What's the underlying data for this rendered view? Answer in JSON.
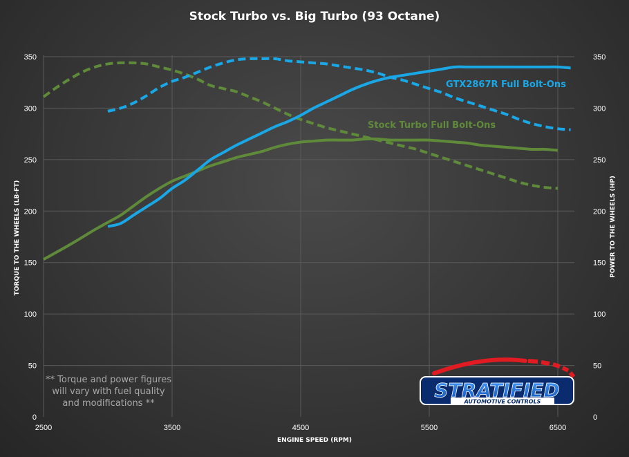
{
  "colors": {
    "stock": "#5f8a3a",
    "big": "#1aa7e6",
    "logo_blue": "#1a6fd8",
    "logo_red": "#e01b22"
  },
  "logo": {
    "name": "STRATIFIED",
    "tagline": "AUTOMOTIVE CONTROLS"
  },
  "note": [
    "** Torque and power figures",
    "will vary with fuel quality",
    "and modifications **"
  ],
  "chart_data": {
    "type": "line",
    "title": "Stock Turbo  vs.  Big Turbo  (93 Octane)",
    "xlabel": "ENGINE SPEED (RPM)",
    "ylabel_left": "TORQUE TO THE WHEELS (LB-FT)",
    "ylabel_right": "POWER TO THE WHEELS (HP)",
    "xlim": [
      2500,
      6700
    ],
    "xticks": [
      2500,
      3500,
      4500,
      5500,
      6500
    ],
    "ylim": [
      0,
      350
    ],
    "yticks": [
      0,
      50,
      100,
      150,
      200,
      250,
      300,
      350
    ],
    "grid": true,
    "series": [
      {
        "name": "Stock Turbo Full Bolt-Ons",
        "metric": "torque",
        "style": "solid",
        "color": "#5f8a3a",
        "x": [
          2500,
          2700,
          2900,
          3000,
          3100,
          3200,
          3300,
          3400,
          3500,
          3600,
          3700,
          3800,
          3900,
          4000,
          4100,
          4200,
          4300,
          4400,
          4500,
          4600,
          4700,
          4800,
          4900,
          5000,
          5100,
          5200,
          5300,
          5400,
          5500,
          5600,
          5700,
          5800,
          5900,
          6000,
          6100,
          6200,
          6300,
          6400,
          6500
        ],
        "y": [
          153,
          167,
          182,
          189,
          196,
          205,
          214,
          222,
          229,
          234,
          239,
          244,
          248,
          252,
          255,
          258,
          262,
          265,
          267,
          268,
          269,
          269,
          269,
          270,
          270,
          269,
          269,
          269,
          269,
          268,
          267,
          266,
          264,
          263,
          262,
          261,
          260,
          260,
          259
        ]
      },
      {
        "name": "Stock Turbo Full Bolt-Ons",
        "metric": "power",
        "style": "dashed",
        "color": "#5f8a3a",
        "x": [
          2500,
          2600,
          2700,
          2800,
          2900,
          3000,
          3100,
          3200,
          3300,
          3400,
          3500,
          3600,
          3700,
          3800,
          3900,
          4000,
          4100,
          4200,
          4300,
          4400,
          4500,
          4600,
          4700,
          4800,
          4900,
          5000,
          5100,
          5200,
          5300,
          5400,
          5500,
          5600,
          5700,
          5800,
          5900,
          6000,
          6100,
          6200,
          6300,
          6400,
          6500
        ],
        "y": [
          311,
          320,
          328,
          335,
          340,
          343,
          344,
          344,
          343,
          340,
          337,
          333,
          328,
          322,
          319,
          316,
          311,
          306,
          300,
          294,
          289,
          285,
          281,
          278,
          275,
          272,
          269,
          266,
          263,
          260,
          256,
          252,
          248,
          244,
          240,
          236,
          232,
          228,
          225,
          223,
          222
        ]
      },
      {
        "name": "GTX2867R Full Bolt-Ons",
        "metric": "torque",
        "style": "solid",
        "color": "#1aa7e6",
        "x": [
          3000,
          3100,
          3200,
          3300,
          3400,
          3500,
          3600,
          3700,
          3800,
          3900,
          4000,
          4100,
          4200,
          4300,
          4400,
          4500,
          4600,
          4700,
          4800,
          4900,
          5000,
          5100,
          5200,
          5300,
          5400,
          5500,
          5600,
          5700,
          5800,
          5900,
          6000,
          6100,
          6200,
          6300,
          6400,
          6500,
          6600
        ],
        "y": [
          185,
          188,
          196,
          204,
          212,
          222,
          230,
          240,
          250,
          257,
          264,
          270,
          276,
          282,
          287,
          293,
          300,
          306,
          312,
          318,
          323,
          327,
          330,
          332,
          334,
          336,
          338,
          340,
          340,
          340,
          340,
          340,
          340,
          340,
          340,
          340,
          339
        ]
      },
      {
        "name": "GTX2867R Full Bolt-Ons",
        "metric": "power",
        "style": "dashed",
        "color": "#1aa7e6",
        "x": [
          3000,
          3100,
          3200,
          3300,
          3400,
          3500,
          3600,
          3700,
          3800,
          3900,
          4000,
          4100,
          4200,
          4300,
          4400,
          4500,
          4600,
          4700,
          4800,
          4900,
          5000,
          5100,
          5200,
          5300,
          5400,
          5500,
          5600,
          5700,
          5800,
          5900,
          6000,
          6100,
          6200,
          6300,
          6400,
          6500,
          6600
        ],
        "y": [
          297,
          300,
          305,
          312,
          320,
          326,
          330,
          335,
          340,
          344,
          347,
          348,
          348,
          348,
          346,
          345,
          344,
          343,
          341,
          339,
          337,
          334,
          330,
          327,
          323,
          319,
          315,
          310,
          306,
          302,
          298,
          294,
          289,
          285,
          282,
          280,
          279
        ]
      }
    ],
    "labels": [
      {
        "text": "GTX2867R Full Bolt-Ons",
        "color": "#1aa7e6"
      },
      {
        "text": "Stock Turbo Full Bolt-Ons",
        "color": "#5f8a3a"
      }
    ]
  }
}
